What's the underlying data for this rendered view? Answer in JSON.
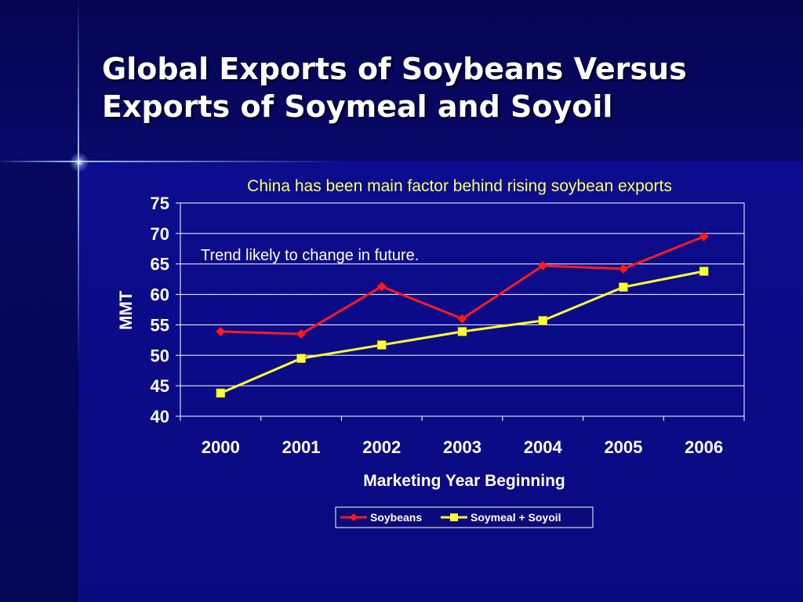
{
  "slide": {
    "title_line1": "Global Exports of Soybeans Versus",
    "title_line2": "Exports of Soymeal and Soyoil"
  },
  "colors": {
    "background": "#0a0a7a",
    "soybeans": "#ff1a1a",
    "soymeal_soyoil": "#ffff33",
    "subtitle": "#ffff66"
  },
  "chart_data": {
    "type": "line",
    "subtitle": "China has been main factor behind rising soybean exports",
    "annotation": "Trend likely to change in future.",
    "xlabel": "Marketing Year Beginning",
    "ylabel": "MMT",
    "categories": [
      "2000",
      "2001",
      "2002",
      "2003",
      "2004",
      "2005",
      "2006"
    ],
    "ylim": [
      40,
      75
    ],
    "yticks": [
      40,
      45,
      50,
      55,
      60,
      65,
      70,
      75
    ],
    "grid": true,
    "legend_position": "bottom",
    "series": [
      {
        "name": "Soybeans",
        "marker": "diamond",
        "color": "#ff1a1a",
        "values": [
          53.9,
          53.5,
          61.3,
          56.0,
          64.7,
          64.2,
          69.5
        ]
      },
      {
        "name": "Soymeal + Soyoil",
        "marker": "square",
        "color": "#ffff33",
        "values": [
          43.8,
          49.5,
          51.7,
          53.9,
          55.7,
          61.2,
          63.8
        ]
      }
    ]
  }
}
